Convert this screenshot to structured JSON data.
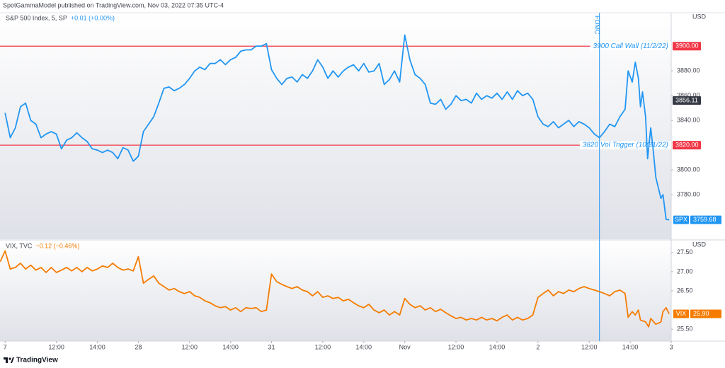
{
  "header": "SpotGammaModel published on TradingView.com, Nov 03, 2022 07:35 UTC-4",
  "footer": "TradingView",
  "chart_data": [
    {
      "type": "line",
      "legend_title": "S&P 500 Index, 5, SP",
      "change": "+0.01 (+0.00%)",
      "unit": "USD",
      "xlim": [
        -0.25,
        32.5
      ],
      "ylim": [
        3744,
        3927
      ],
      "yticks": [
        {
          "value": 3780,
          "label": "3780.00"
        },
        {
          "value": 3800,
          "label": "3800.00"
        },
        {
          "value": 3840,
          "label": "3840.00"
        },
        {
          "value": 3860,
          "label": "3860.00"
        },
        {
          "value": 3880,
          "label": "3880.00"
        }
      ],
      "grid": false,
      "hlines": [
        {
          "value": 3900,
          "label": "3900.00",
          "annotation": "3900 Call Wall (11/2/22)",
          "color": "#f23645"
        },
        {
          "value": 3820,
          "label": "3820.00",
          "annotation": "3820 Vol Trigger (10/31/22)",
          "color": "#f23645"
        }
      ],
      "vlines": [
        {
          "value": 29,
          "label": "FOMC",
          "color": "#2196f3"
        }
      ],
      "price_labels": [
        {
          "value": 3856.11,
          "color": "#363a45"
        }
      ],
      "series": [
        {
          "name": "SPX",
          "color": "#2196f3",
          "x": [
            0,
            0.25,
            0.5,
            0.75,
            1,
            1.25,
            1.5,
            1.75,
            2,
            2.25,
            2.5,
            2.75,
            3,
            3.25,
            3.5,
            3.75,
            4,
            4.25,
            4.5,
            4.75,
            5,
            5.25,
            5.5,
            5.75,
            6,
            6.25,
            6.5,
            6.75,
            7,
            7.25,
            7.5,
            7.75,
            8,
            8.25,
            8.5,
            8.75,
            9,
            9.25,
            9.5,
            9.75,
            10,
            10.25,
            10.5,
            10.75,
            11,
            11.25,
            11.5,
            11.75,
            12,
            12.25,
            12.5,
            12.75,
            13,
            13.25,
            13.5,
            13.75,
            14,
            14.25,
            14.5,
            14.75,
            15,
            15.25,
            15.5,
            15.75,
            16,
            16.25,
            16.5,
            16.75,
            17,
            17.25,
            17.5,
            17.75,
            18,
            18.25,
            18.5,
            18.75,
            19,
            19.25,
            19.5,
            19.75,
            20,
            20.25,
            20.5,
            20.75,
            21,
            21.25,
            21.5,
            21.75,
            22,
            22.25,
            22.5,
            22.75,
            23,
            23.25,
            23.5,
            23.75,
            24,
            24.25,
            24.5,
            24.75,
            25,
            25.25,
            25.5,
            25.75,
            26,
            26.25,
            26.5,
            26.75,
            27,
            27.25,
            27.5,
            27.75,
            28,
            28.25,
            28.5,
            28.75,
            29,
            29.25,
            29.5,
            29.75,
            30,
            30.25,
            30.4,
            30.6,
            30.75,
            30.9,
            31,
            31.1,
            31.25,
            31.35,
            31.5,
            31.6,
            31.75,
            32,
            32.1,
            32.25,
            32.4
          ],
          "values": [
            3846,
            3826,
            3834,
            3851,
            3854,
            3840,
            3837,
            3826,
            3829,
            3831,
            3829,
            3817,
            3824,
            3826,
            3830,
            3826,
            3823,
            3817,
            3816,
            3814,
            3816,
            3814,
            3809,
            3818,
            3816,
            3807,
            3811,
            3831,
            3837,
            3843,
            3854,
            3866,
            3867,
            3864,
            3866,
            3869,
            3874,
            3880,
            3883,
            3881,
            3886,
            3886,
            3889,
            3885,
            3889,
            3891,
            3896,
            3897,
            3897,
            3900,
            3900,
            3902,
            3881,
            3874,
            3869,
            3874,
            3875,
            3871,
            3877,
            3874,
            3880,
            3889,
            3883,
            3874,
            3880,
            3875,
            3880,
            3883,
            3885,
            3880,
            3886,
            3879,
            3880,
            3886,
            3869,
            3873,
            3880,
            3871,
            3909,
            3889,
            3877,
            3874,
            3869,
            3854,
            3853,
            3857,
            3849,
            3853,
            3860,
            3856,
            3857,
            3854,
            3862,
            3857,
            3860,
            3858,
            3862,
            3857,
            3863,
            3857,
            3864,
            3860,
            3862,
            3857,
            3843,
            3837,
            3835,
            3839,
            3834,
            3837,
            3840,
            3835,
            3839,
            3837,
            3834,
            3829,
            3826,
            3831,
            3837,
            3835,
            3843,
            3849,
            3880,
            3871,
            3887,
            3874,
            3851,
            3863,
            3843,
            3809,
            3834,
            3820,
            3794,
            3777,
            3780,
            3760,
            3759.68
          ]
        }
      ]
    },
    {
      "type": "line",
      "legend_title": "VIX, TVC",
      "change": "−0.12 (−0.46%)",
      "unit": "USD",
      "xlim": [
        -0.25,
        32.5
      ],
      "xticks": [
        {
          "value": 0,
          "label": "7"
        },
        {
          "value": 2.5,
          "label": "12:00"
        },
        {
          "value": 4.5,
          "label": "14:00"
        },
        {
          "value": 6.5,
          "label": "28"
        },
        {
          "value": 9,
          "label": "12:00"
        },
        {
          "value": 11,
          "label": "14:00"
        },
        {
          "value": 13,
          "label": "31"
        },
        {
          "value": 15.5,
          "label": "12:00"
        },
        {
          "value": 17.5,
          "label": "14:00"
        },
        {
          "value": 19.5,
          "label": "Nov"
        },
        {
          "value": 22,
          "label": "12:00"
        },
        {
          "value": 24,
          "label": "14:00"
        },
        {
          "value": 26,
          "label": "2"
        },
        {
          "value": 28.5,
          "label": "12:00"
        },
        {
          "value": 30.5,
          "label": "14:00"
        },
        {
          "value": 32.5,
          "label": "3"
        }
      ],
      "ylim": [
        25.19,
        27.81
      ],
      "yticks": [
        {
          "value": 25.5,
          "label": "25.50"
        },
        {
          "value": 26.5,
          "label": "26.50"
        },
        {
          "value": 27,
          "label": "27.00"
        },
        {
          "value": 27.5,
          "label": "27.50"
        }
      ],
      "grid": false,
      "series": [
        {
          "name": "VIX",
          "color": "#f57c00",
          "last_label": "25.90",
          "x": [
            -0.24,
            0,
            0.25,
            0.5,
            0.75,
            1,
            1.25,
            1.5,
            1.75,
            2,
            2.25,
            2.5,
            2.75,
            3,
            3.25,
            3.5,
            3.75,
            4,
            4.25,
            4.5,
            4.75,
            5,
            5.25,
            5.5,
            5.75,
            6,
            6.25,
            6.5,
            6.75,
            7,
            7.25,
            7.5,
            7.75,
            8,
            8.25,
            8.5,
            8.75,
            9,
            9.25,
            9.5,
            9.75,
            10,
            10.25,
            10.5,
            10.75,
            11,
            11.25,
            11.5,
            11.75,
            12,
            12.25,
            12.5,
            12.75,
            13,
            13.25,
            13.5,
            13.75,
            14,
            14.25,
            14.5,
            14.75,
            15,
            15.25,
            15.5,
            15.75,
            16,
            16.25,
            16.5,
            16.75,
            17,
            17.25,
            17.5,
            17.75,
            18,
            18.25,
            18.5,
            18.75,
            19,
            19.25,
            19.5,
            19.75,
            20,
            20.25,
            20.5,
            20.75,
            21,
            21.25,
            21.5,
            21.75,
            22,
            22.25,
            22.5,
            22.75,
            23,
            23.25,
            23.5,
            23.75,
            24,
            24.25,
            24.5,
            24.75,
            25,
            25.25,
            25.5,
            25.75,
            26,
            26.25,
            26.5,
            26.75,
            27,
            27.25,
            27.5,
            27.75,
            28,
            28.25,
            28.5,
            28.75,
            29,
            29.25,
            29.5,
            29.75,
            30,
            30.25,
            30.4,
            30.6,
            30.75,
            30.9,
            31,
            31.25,
            31.4,
            31.5,
            31.75,
            32,
            32.1,
            32.25,
            32.4
          ],
          "values": [
            27.26,
            27.54,
            27.07,
            27.11,
            27.22,
            27.07,
            27.17,
            27.04,
            27.11,
            26.98,
            27.11,
            26.98,
            27.04,
            27.11,
            27.02,
            27.11,
            27.0,
            27.11,
            27.02,
            27.07,
            27.15,
            27.11,
            27.22,
            27.11,
            27.04,
            27.07,
            27.02,
            27.39,
            26.7,
            26.8,
            26.89,
            26.7,
            26.61,
            26.52,
            26.56,
            26.48,
            26.43,
            26.48,
            26.37,
            26.33,
            26.24,
            26.19,
            26.11,
            26.06,
            26.09,
            26.0,
            26.06,
            25.96,
            26.06,
            26.04,
            26.06,
            25.96,
            26.0,
            26.94,
            26.74,
            26.67,
            26.61,
            26.56,
            26.61,
            26.52,
            26.48,
            26.37,
            26.48,
            26.33,
            26.37,
            26.3,
            26.33,
            26.24,
            26.28,
            26.19,
            26.11,
            26.06,
            26.15,
            26.0,
            25.93,
            26.0,
            25.87,
            25.96,
            25.87,
            26.3,
            26.15,
            26.06,
            26.11,
            26.0,
            26.06,
            25.96,
            26.02,
            25.93,
            25.85,
            25.78,
            25.81,
            25.74,
            25.78,
            25.74,
            25.81,
            25.74,
            25.78,
            25.72,
            25.81,
            25.87,
            25.74,
            25.81,
            25.74,
            25.78,
            25.87,
            26.33,
            26.43,
            26.52,
            26.37,
            26.48,
            26.43,
            26.52,
            26.48,
            26.56,
            26.61,
            26.56,
            26.52,
            26.48,
            26.43,
            26.37,
            26.48,
            26.52,
            26.43,
            25.81,
            25.96,
            25.87,
            26.0,
            25.74,
            25.69,
            25.56,
            25.78,
            25.63,
            25.69,
            25.96,
            26.06,
            25.9
          ]
        }
      ]
    }
  ]
}
